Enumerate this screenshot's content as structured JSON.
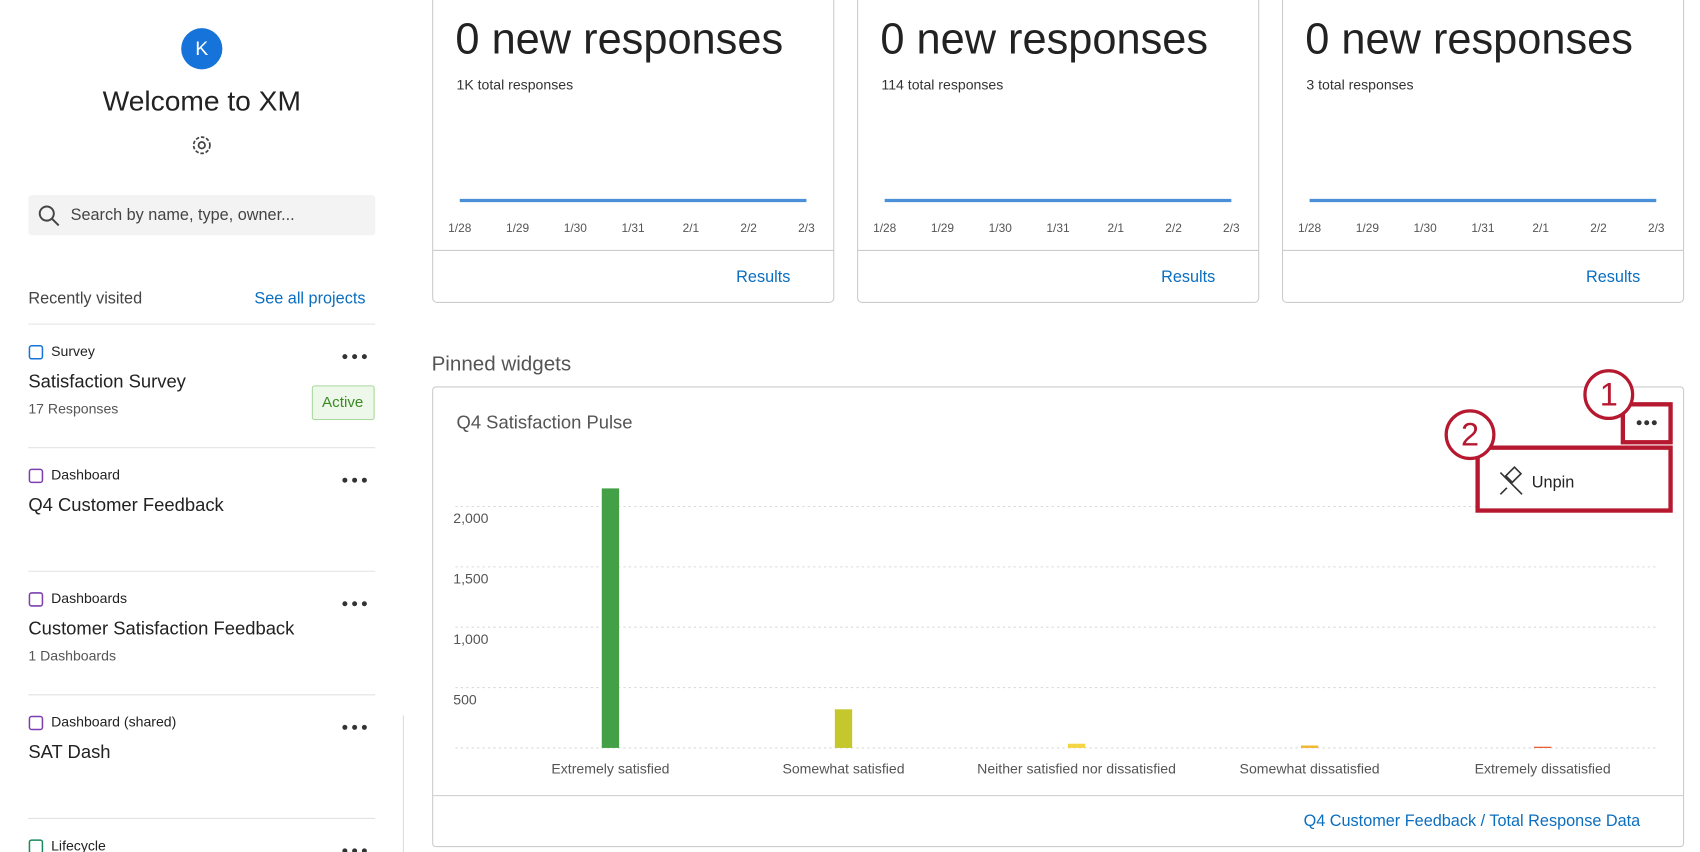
{
  "sidebar": {
    "avatar": "K",
    "welcome": "Welcome to XM",
    "search_placeholder": "Search by name, type, owner...",
    "recent_heading": "Recently visited",
    "see_all": "See all projects",
    "items": [
      {
        "type": "Survey",
        "title": "Satisfaction Survey",
        "subtitle": "17 Responses",
        "status": "Active"
      },
      {
        "type": "Dashboard",
        "title": "Q4 Customer Feedback"
      },
      {
        "type": "Dashboards",
        "title": "Customer Satisfaction Feedback",
        "subtitle": "1 Dashboards"
      },
      {
        "type": "Dashboard (shared)",
        "title": "SAT Dash"
      },
      {
        "type": "Lifecycle"
      }
    ]
  },
  "cards": [
    {
      "headline": "0 new responses",
      "subtitle": "1K total responses",
      "link": "Results",
      "chart_data": {
        "type": "line",
        "color": "#4a90d9",
        "categories": [
          "1/28",
          "1/29",
          "1/30",
          "1/31",
          "2/1",
          "2/2",
          "2/3"
        ],
        "values": [
          0,
          0,
          0,
          0,
          0,
          0,
          0
        ]
      }
    },
    {
      "headline": "0 new responses",
      "subtitle": "114 total responses",
      "link": "Results",
      "chart_data": {
        "type": "line",
        "color": "#4a90d9",
        "categories": [
          "1/28",
          "1/29",
          "1/30",
          "1/31",
          "2/1",
          "2/2",
          "2/3"
        ],
        "values": [
          0,
          0,
          0,
          0,
          0,
          0,
          0
        ]
      }
    },
    {
      "headline": "0 new responses",
      "subtitle": "3 total responses",
      "link": "Results",
      "chart_data": {
        "type": "line",
        "color": "#4a90d9",
        "categories": [
          "1/28",
          "1/29",
          "1/30",
          "1/31",
          "2/1",
          "2/2",
          "2/3"
        ],
        "values": [
          0,
          0,
          0,
          0,
          0,
          0,
          0
        ]
      }
    }
  ],
  "pinned": {
    "heading": "Pinned widgets",
    "footer_link": "Q4 Customer Feedback / Total Response Data",
    "chart_data": {
      "type": "bar",
      "title": "Q4 Satisfaction Pulse",
      "categories": [
        "Extremely satisfied",
        "Somewhat satisfied",
        "Neither satisfied nor dissatisfied",
        "Somewhat dissatisfied",
        "Extremely dissatisfied"
      ],
      "series": [
        {
          "colors": [
            "#43a047",
            "#c5c82c",
            "#f4d544",
            "#f0b72f",
            "#e8562a"
          ],
          "values": [
            2150,
            320,
            35,
            20,
            10
          ]
        }
      ],
      "ylim": [
        0,
        2200
      ],
      "yticks": [
        500,
        {
          "value": 1000,
          "label": "1,000"
        },
        {
          "value": 1500,
          "label": "1,500"
        },
        {
          "value": 2000,
          "label": "2,000"
        }
      ],
      "grid": true
    }
  },
  "annotations": {
    "step1": "1",
    "step2": "2",
    "menu_item": "Unpin"
  }
}
